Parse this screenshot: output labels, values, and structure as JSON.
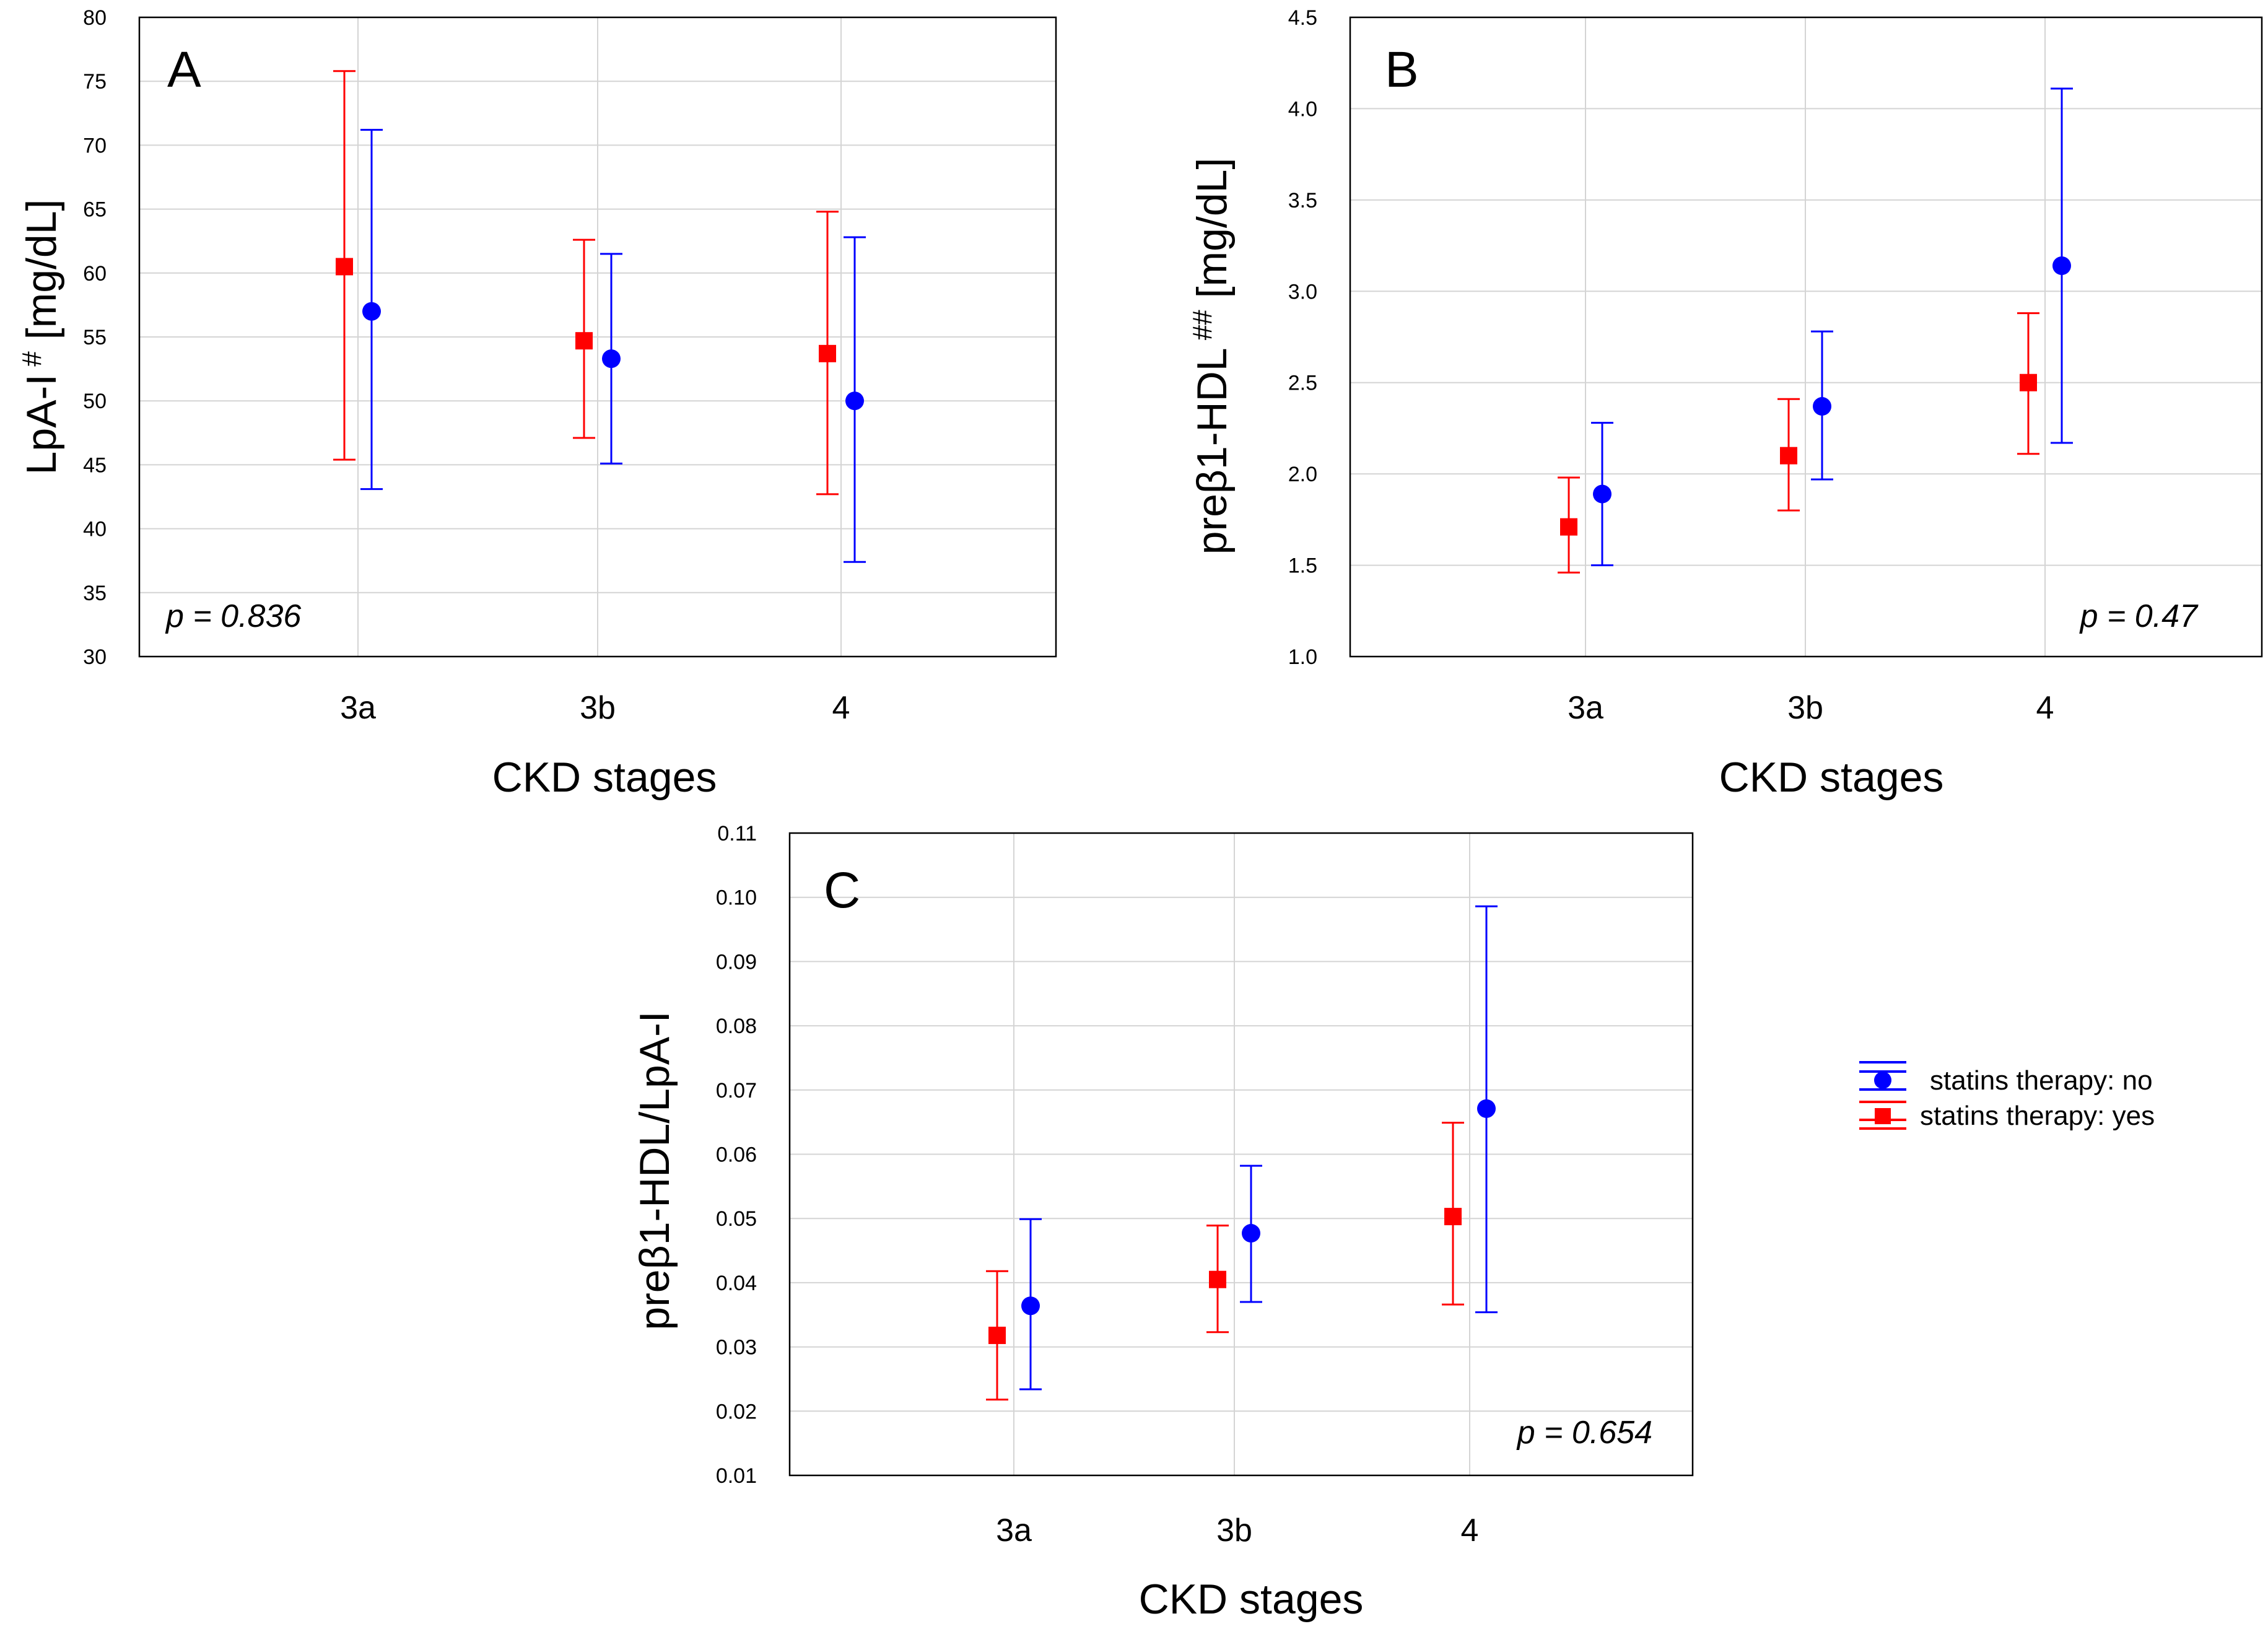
{
  "figure": {
    "xlabel": "CKD stages",
    "legend": [
      {
        "label": "statins therapy: no",
        "color": "#0000ff",
        "marker": "circle"
      },
      {
        "label": "statins therapy: yes",
        "color": "#ff0000",
        "marker": "square"
      }
    ]
  },
  "chart_data": [
    {
      "type": "errorbar",
      "panel": "A",
      "ylabel_main": "LpA-I",
      "ylabel_sup": "#",
      "ylabel_rest": "[mg/dL]",
      "xlabel": "CKD stages",
      "categories": [
        "3a",
        "3b",
        "4"
      ],
      "ylim": [
        30,
        80
      ],
      "yticks": [
        30,
        35,
        40,
        45,
        50,
        55,
        60,
        65,
        70,
        75,
        80
      ],
      "ytick_labels": [
        "30",
        "35",
        "40",
        "45",
        "50",
        "55",
        "60",
        "65",
        "70",
        "75",
        "80"
      ],
      "p_value": "p = 0.836",
      "p_position": "bottom-left",
      "series": [
        {
          "name": "statins therapy: yes",
          "color": "#ff0000",
          "marker": "square",
          "values": [
            60.5,
            54.7,
            53.7
          ],
          "lower": [
            45.4,
            47.1,
            42.7
          ],
          "upper": [
            75.8,
            62.6,
            64.8
          ]
        },
        {
          "name": "statins therapy: no",
          "color": "#0000ff",
          "marker": "circle",
          "values": [
            57.0,
            53.3,
            50.0
          ],
          "lower": [
            43.1,
            45.1,
            37.4
          ],
          "upper": [
            71.2,
            61.5,
            62.8
          ]
        }
      ]
    },
    {
      "type": "errorbar",
      "panel": "B",
      "ylabel_main": "preβ1-HDL",
      "ylabel_sup": "##",
      "ylabel_rest": "[mg/dL]",
      "xlabel": "CKD stages",
      "categories": [
        "3a",
        "3b",
        "4"
      ],
      "ylim": [
        1.0,
        4.5
      ],
      "yticks": [
        1.0,
        1.5,
        2.0,
        2.5,
        3.0,
        3.5,
        4.0,
        4.5
      ],
      "ytick_labels": [
        "1.0",
        "1.5",
        "2.0",
        "2.5",
        "3.0",
        "3.5",
        "4.0",
        "4.5"
      ],
      "p_value": "p = 0.47",
      "p_position": "bottom-right",
      "series": [
        {
          "name": "statins therapy: yes",
          "color": "#ff0000",
          "marker": "square",
          "values": [
            1.71,
            2.1,
            2.5
          ],
          "lower": [
            1.46,
            1.8,
            2.11
          ],
          "upper": [
            1.98,
            2.41,
            2.88
          ]
        },
        {
          "name": "statins therapy: no",
          "color": "#0000ff",
          "marker": "circle",
          "values": [
            1.89,
            2.37,
            3.14
          ],
          "lower": [
            1.5,
            1.97,
            2.17
          ],
          "upper": [
            2.28,
            2.78,
            4.11
          ]
        }
      ]
    },
    {
      "type": "errorbar",
      "panel": "C",
      "ylabel_main": "preβ1-HDL/LpA-I",
      "ylabel_sup": "",
      "ylabel_rest": "",
      "xlabel": "CKD stages",
      "categories": [
        "3a",
        "3b",
        "4"
      ],
      "ylim": [
        0.01,
        0.11
      ],
      "yticks": [
        0.01,
        0.02,
        0.03,
        0.04,
        0.05,
        0.06,
        0.07,
        0.08,
        0.09,
        0.1,
        0.11
      ],
      "ytick_labels": [
        "0.01",
        "0.02",
        "0.03",
        "0.04",
        "0.05",
        "0.06",
        "0.07",
        "0.08",
        "0.09",
        "0.10",
        "0.11"
      ],
      "p_value": "p = 0.654",
      "p_position": "bottom-right",
      "series": [
        {
          "name": "statins therapy: yes",
          "color": "#ff0000",
          "marker": "square",
          "values": [
            0.0318,
            0.0405,
            0.0503
          ],
          "lower": [
            0.0218,
            0.0323,
            0.0366
          ],
          "upper": [
            0.0418,
            0.0489,
            0.0649
          ]
        },
        {
          "name": "statins therapy: no",
          "color": "#0000ff",
          "marker": "circle",
          "values": [
            0.0364,
            0.0477,
            0.0671
          ],
          "lower": [
            0.0234,
            0.037,
            0.0354
          ],
          "upper": [
            0.0499,
            0.0582,
            0.0986
          ]
        }
      ]
    }
  ]
}
